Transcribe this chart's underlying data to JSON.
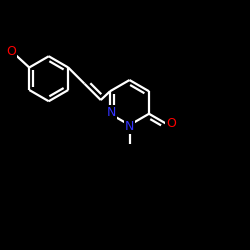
{
  "bg_color": "#000000",
  "bond_color": "#ffffff",
  "N_color": "#3333ff",
  "O_color": "#ff0000",
  "lw": 1.6,
  "figsize": [
    2.5,
    2.5
  ],
  "dpi": 100,
  "xlim": [
    0.0,
    1.0
  ],
  "ylim": [
    0.0,
    1.0
  ]
}
